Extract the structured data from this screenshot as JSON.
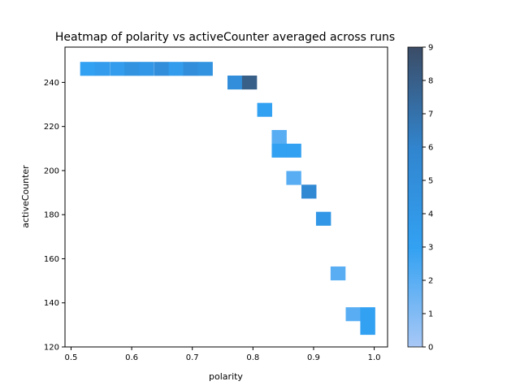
{
  "chart_data": {
    "type": "heatmap",
    "title": "Heatmap of polarity vs activeCounter averaged across runs",
    "xlabel": "polarity",
    "ylabel": "activeCounter",
    "xlim": [
      0.49,
      1.022
    ],
    "ylim": [
      120,
      256
    ],
    "xticks": [
      0.5,
      0.6,
      0.7,
      0.8,
      0.9,
      1.0
    ],
    "xtick_labels": [
      "0.5",
      "0.6",
      "0.7",
      "0.8",
      "0.9",
      "1.0"
    ],
    "yticks": [
      120,
      140,
      160,
      180,
      200,
      220,
      240
    ],
    "ytick_labels": [
      "120",
      "140",
      "160",
      "180",
      "200",
      "220",
      "240"
    ],
    "colorbar": {
      "min": 0,
      "max": 9,
      "ticks": [
        0,
        1,
        2,
        3,
        4,
        5,
        6,
        7,
        8,
        9
      ],
      "tick_labels": [
        "0",
        "1",
        "2",
        "3",
        "4",
        "5",
        "6",
        "7",
        "8",
        "9"
      ],
      "color_low": "#a8c8f6",
      "color_mid": "#33a1f2",
      "color_high": "#3b4c66"
    },
    "bin_width_x": 0.0243,
    "bin_height_y": 6.2,
    "cells": [
      {
        "x": 0.515,
        "y": 243.1,
        "value": 3
      },
      {
        "x": 0.539,
        "y": 243.1,
        "value": 3.5
      },
      {
        "x": 0.564,
        "y": 243.1,
        "value": 3.5
      },
      {
        "x": 0.588,
        "y": 243.1,
        "value": 4.5
      },
      {
        "x": 0.612,
        "y": 243.1,
        "value": 4
      },
      {
        "x": 0.637,
        "y": 243.1,
        "value": 5
      },
      {
        "x": 0.661,
        "y": 243.1,
        "value": 3.5
      },
      {
        "x": 0.685,
        "y": 243.1,
        "value": 5
      },
      {
        "x": 0.709,
        "y": 243.1,
        "value": 4.5
      },
      {
        "x": 0.758,
        "y": 236.9,
        "value": 5
      },
      {
        "x": 0.782,
        "y": 236.9,
        "value": 8
      },
      {
        "x": 0.807,
        "y": 224.5,
        "value": 3
      },
      {
        "x": 0.831,
        "y": 212.2,
        "value": 2
      },
      {
        "x": 0.831,
        "y": 206.0,
        "value": 3
      },
      {
        "x": 0.855,
        "y": 206.0,
        "value": 3
      },
      {
        "x": 0.855,
        "y": 193.6,
        "value": 2
      },
      {
        "x": 0.88,
        "y": 187.4,
        "value": 5.5
      },
      {
        "x": 0.904,
        "y": 175.1,
        "value": 4
      },
      {
        "x": 0.928,
        "y": 150.3,
        "value": 2
      },
      {
        "x": 0.953,
        "y": 131.8,
        "value": 2
      },
      {
        "x": 0.977,
        "y": 131.8,
        "value": 3
      },
      {
        "x": 0.977,
        "y": 125.6,
        "value": 3
      }
    ]
  }
}
